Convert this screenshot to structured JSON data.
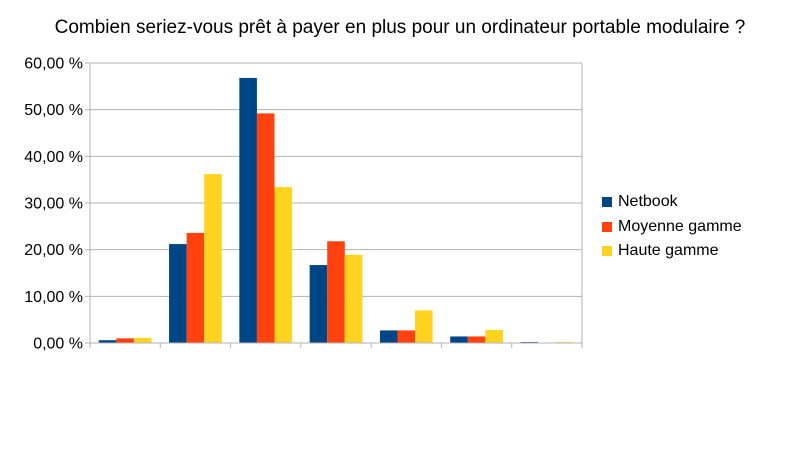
{
  "chart_data": {
    "type": "bar",
    "title": "Combien seriez-vous prêt à payer en plus pour un ordinateur portable modulaire ?",
    "categories": [
      "",
      "",
      "",
      "",
      "",
      "",
      ""
    ],
    "series": [
      {
        "name": "Netbook",
        "color": "#004586",
        "values": [
          0.6,
          21.2,
          56.8,
          16.7,
          2.7,
          1.4,
          0.2
        ]
      },
      {
        "name": "Moyenne gamme",
        "color": "#ff420e",
        "values": [
          1.0,
          23.6,
          49.2,
          21.8,
          2.7,
          1.4,
          0.05
        ]
      },
      {
        "name": "Haute gamme",
        "color": "#ffd320",
        "values": [
          1.1,
          36.2,
          33.4,
          18.9,
          7.0,
          2.8,
          0.2
        ]
      }
    ],
    "yticks": [
      "0,00 %",
      "10,00 %",
      "20,00 %",
      "30,00 %",
      "40,00 %",
      "50,00 %",
      "60,00 %"
    ],
    "ylim": [
      0,
      60
    ],
    "xlabel": "",
    "ylabel": "",
    "grid": true,
    "legend_position": "right"
  }
}
